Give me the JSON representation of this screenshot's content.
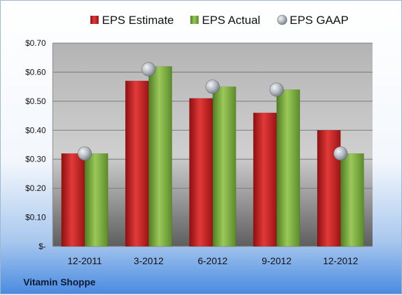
{
  "chart_data": {
    "type": "bar",
    "categories": [
      "12-2011",
      "3-2012",
      "6-2012",
      "9-2012",
      "12-2012"
    ],
    "series": [
      {
        "name": "EPS Estimate",
        "kind": "bar",
        "values": [
          0.32,
          0.57,
          0.51,
          0.46,
          0.4
        ],
        "color": "#cc2222"
      },
      {
        "name": "EPS Actual",
        "kind": "bar",
        "values": [
          0.32,
          0.62,
          0.55,
          0.54,
          0.32
        ],
        "color": "#7caa3c"
      },
      {
        "name": "EPS GAAP",
        "kind": "marker",
        "values": [
          0.32,
          0.61,
          0.55,
          0.54,
          0.32
        ],
        "color": "#b0b6be"
      }
    ],
    "y_ticks": [
      "$-",
      "$0.10",
      "$0.20",
      "$0.30",
      "$0.40",
      "$0.50",
      "$0.60",
      "$0.70"
    ],
    "ylim": [
      0,
      0.7
    ],
    "y_step": 0.1,
    "grid": true,
    "legend_position": "top",
    "footer": "Vitamin Shoppe"
  }
}
